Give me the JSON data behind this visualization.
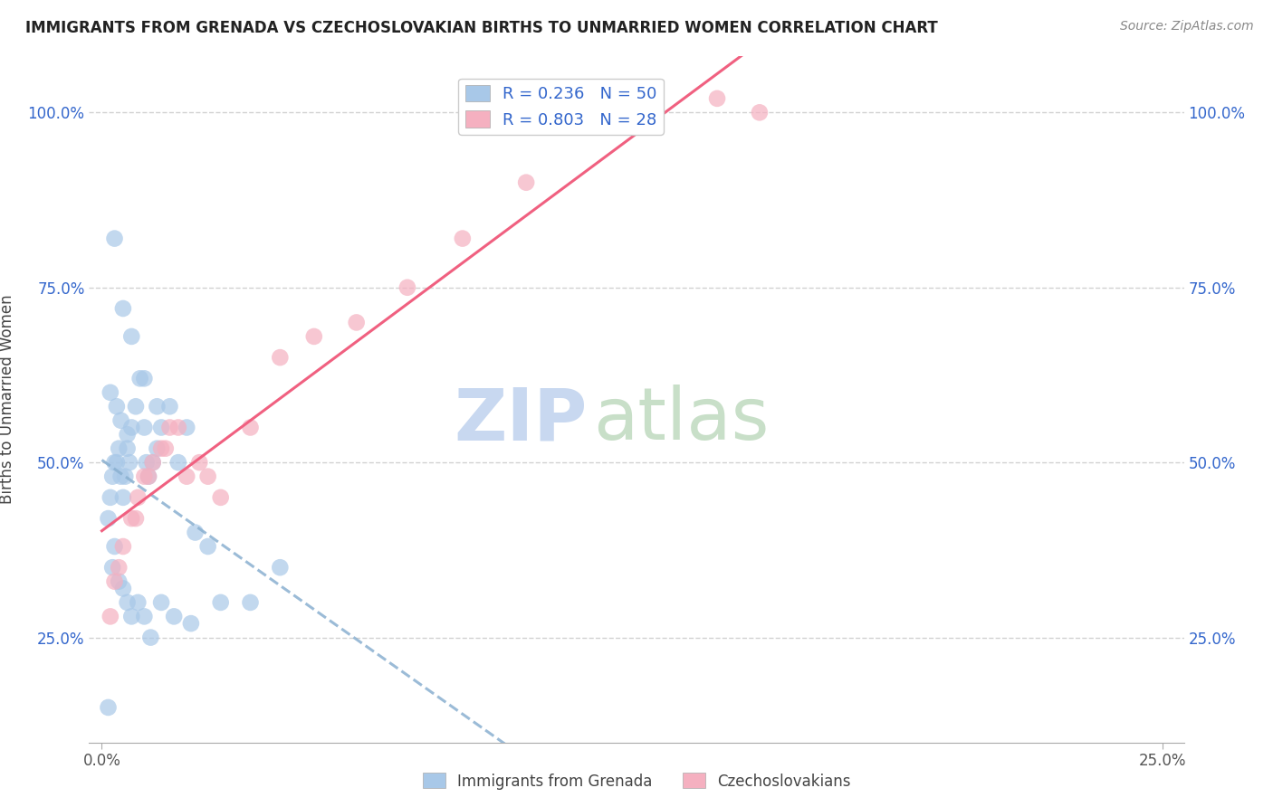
{
  "title": "IMMIGRANTS FROM GRENADA VS CZECHOSLOVAKIAN BIRTHS TO UNMARRIED WOMEN CORRELATION CHART",
  "source": "Source: ZipAtlas.com",
  "ylabel": "Births to Unmarried Women",
  "x_tick_labels_bottom": [
    "0.0%",
    "25.0%"
  ],
  "x_tick_positions_bottom": [
    0.0,
    25.0
  ],
  "y_ticks": [
    0.25,
    0.5,
    0.75,
    1.0
  ],
  "y_tick_labels": [
    "25.0%",
    "50.0%",
    "75.0%",
    "100.0%"
  ],
  "xlim": [
    -0.3,
    25.5
  ],
  "ylim": [
    0.1,
    1.08
  ],
  "R_blue": 0.236,
  "N_blue": 50,
  "R_pink": 0.803,
  "N_pink": 28,
  "blue_color": "#a8c8e8",
  "pink_color": "#f5b0c0",
  "blue_line_color": "#8ab0d0",
  "pink_line_color": "#f06080",
  "legend_R_color": "#3366cc",
  "watermark_zip_color": "#c8d8f0",
  "watermark_atlas_color": "#c8dfc8",
  "blue_x": [
    0.15,
    0.2,
    0.25,
    0.3,
    0.35,
    0.4,
    0.45,
    0.5,
    0.55,
    0.6,
    0.65,
    0.7,
    0.8,
    0.9,
    1.0,
    1.05,
    1.1,
    1.2,
    1.3,
    1.4,
    1.6,
    1.8,
    2.0,
    2.2,
    2.5,
    0.25,
    0.3,
    0.4,
    0.5,
    0.6,
    0.7,
    0.85,
    1.0,
    1.15,
    1.4,
    1.7,
    2.1,
    2.8,
    3.5,
    4.2,
    0.3,
    0.5,
    0.7,
    1.0,
    1.3,
    0.2,
    0.35,
    0.45,
    0.6,
    0.15
  ],
  "blue_y": [
    0.42,
    0.45,
    0.48,
    0.5,
    0.5,
    0.52,
    0.48,
    0.45,
    0.48,
    0.52,
    0.5,
    0.55,
    0.58,
    0.62,
    0.55,
    0.5,
    0.48,
    0.5,
    0.52,
    0.55,
    0.58,
    0.5,
    0.55,
    0.4,
    0.38,
    0.35,
    0.38,
    0.33,
    0.32,
    0.3,
    0.28,
    0.3,
    0.28,
    0.25,
    0.3,
    0.28,
    0.27,
    0.3,
    0.3,
    0.35,
    0.82,
    0.72,
    0.68,
    0.62,
    0.58,
    0.6,
    0.58,
    0.56,
    0.54,
    0.15
  ],
  "pink_x": [
    0.2,
    0.3,
    0.5,
    0.7,
    0.85,
    1.0,
    1.2,
    1.4,
    1.6,
    1.8,
    2.0,
    2.3,
    2.8,
    3.5,
    4.2,
    5.0,
    6.0,
    7.2,
    8.5,
    10.0,
    12.0,
    14.5,
    15.5,
    0.4,
    0.8,
    1.5,
    2.5,
    1.1
  ],
  "pink_y": [
    0.28,
    0.33,
    0.38,
    0.42,
    0.45,
    0.48,
    0.5,
    0.52,
    0.55,
    0.55,
    0.48,
    0.5,
    0.45,
    0.55,
    0.65,
    0.68,
    0.7,
    0.75,
    0.82,
    0.9,
    0.98,
    1.02,
    1.0,
    0.35,
    0.42,
    0.52,
    0.48,
    0.48
  ]
}
